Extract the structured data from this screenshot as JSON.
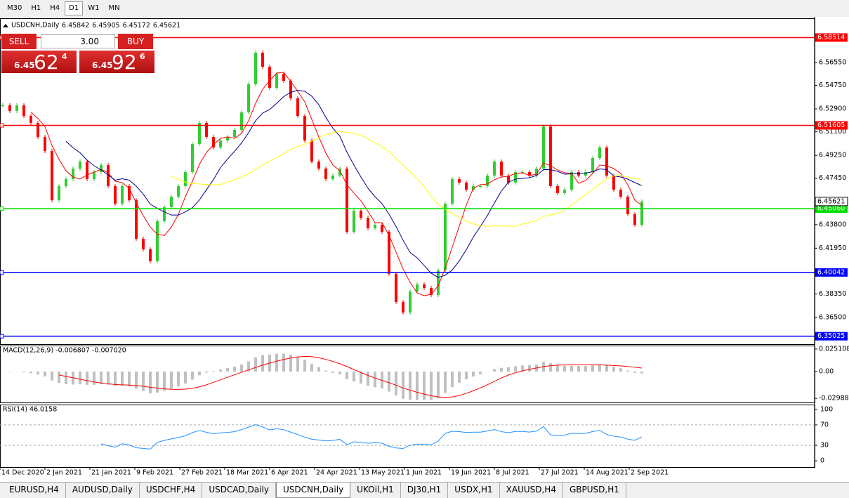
{
  "toolbar": {
    "timeframes": [
      "M30",
      "H1",
      "H4",
      "D1",
      "W1",
      "MN"
    ],
    "active": "D1"
  },
  "trade_panel": {
    "sell": "SELL",
    "buy": "BUY",
    "lots": "3.00",
    "bid": {
      "prefix": "6.45",
      "big": "62",
      "small": "4"
    },
    "ask": {
      "prefix": "6.45",
      "big": "92",
      "small": "6"
    }
  },
  "tabs": {
    "items": [
      "EURUSD,H4",
      "AUDUSD,Daily",
      "USDCHF,H4",
      "USDCAD,Daily",
      "USDCNH,Daily",
      "UKOil,H1",
      "DJ30,H1",
      "USDX,H1",
      "XAUUSD,H4",
      "GBPUSD,H1"
    ],
    "active": "USDCNH,Daily"
  },
  "chart_data": {
    "type": "candlestick",
    "title": "USDCNH,Daily",
    "ohlc": [
      6.45842,
      6.45905,
      6.45172,
      6.45621
    ],
    "up_color": "#32cd32",
    "down_color": "#ff0000",
    "closes": [
      6.5318,
      6.5274,
      6.5318,
      6.5235,
      6.518,
      6.507,
      6.4959,
      6.4572,
      6.4683,
      6.4738,
      6.4821,
      6.4876,
      6.4738,
      6.4793,
      6.4849,
      6.4683,
      6.4545,
      6.4683,
      6.4572,
      6.4269,
      6.4186,
      6.4092,
      6.4407,
      6.4517,
      6.46,
      6.4683,
      6.4793,
      6.5014,
      6.518,
      6.507,
      6.4987,
      6.5042,
      6.507,
      6.5125,
      6.5263,
      6.5484,
      6.5732,
      6.5622,
      6.5456,
      6.5567,
      6.5511,
      6.5373,
      6.5235,
      6.5042,
      6.4876,
      6.4821,
      6.4738,
      6.4766,
      6.4821,
      6.4324,
      6.449,
      6.4434,
      6.4352,
      6.4379,
      6.4324,
      6.3993,
      6.3772,
      6.3689,
      6.3854,
      6.391,
      6.3882,
      6.3827,
      6.402,
      6.4545,
      6.4738,
      6.4711,
      6.4655,
      6.4683,
      6.4683,
      6.4766,
      6.4876,
      6.4766,
      6.4711,
      6.4793,
      6.4793,
      6.4766,
      6.4821,
      6.5152,
      6.4683,
      6.4628,
      6.4655,
      6.4793,
      6.4766,
      6.4793,
      6.4904,
      6.4987,
      6.4766,
      6.4655,
      6.46,
      6.4462,
      6.4379,
      6.45621
    ],
    "moving_averages": [
      {
        "period": 5,
        "color": "#ff0000"
      },
      {
        "period": 10,
        "color": "#00008b"
      },
      {
        "period": 25,
        "color": "#ffff00"
      }
    ],
    "x_labels": [
      "14 Dec 2020",
      "2 Jan 2021",
      "21 Jan 2021",
      "9 Feb 2021",
      "27 Feb 2021",
      "18 Mar 2021",
      "6 Apr 2021",
      "24 Apr 2021",
      "13 May 2021",
      "1 Jun 2021",
      "19 Jun 2021",
      "8 Jul 2021",
      "27 Jul 2021",
      "14 Aug 2021",
      "2 Sep 2021"
    ],
    "ylim": [
      6.344,
      6.6003
    ],
    "yticks": [
      {
        "value": 6.5655,
        "label": "6.56550"
      },
      {
        "value": 6.5475,
        "label": "6.54750"
      },
      {
        "value": 6.529,
        "label": "6.52900"
      },
      {
        "value": 6.511,
        "label": "6.51100"
      },
      {
        "value": 6.4925,
        "label": "6.49250"
      },
      {
        "value": 6.4745,
        "label": "6.47450"
      },
      {
        "value": 6.438,
        "label": "6.43800"
      },
      {
        "value": 6.4195,
        "label": "6.41950"
      },
      {
        "value": 6.3835,
        "label": "6.38350"
      },
      {
        "value": 6.365,
        "label": "6.36500"
      }
    ],
    "levels": [
      {
        "value": 6.58514,
        "color": "#ff0000"
      },
      {
        "value": 6.51605,
        "color": "#ff0000"
      },
      {
        "value": {
          "value": 6.4506,
          "label": "6.45060"
        },
        "color": "#00e000"
      },
      {
        "value": 6.40042,
        "color": "#0000ff"
      },
      {
        "value": 6.35025,
        "color": "#0000ff"
      }
    ],
    "current": 6.45621,
    "macd": {
      "label": "MACD(12,26,9) -0.006807 -0.007020",
      "fast": 12,
      "slow": 26,
      "signal": 9,
      "hist_color": "#c0c0c0",
      "signal_color": "#ff0000",
      "ylim": [
        -0.0345,
        0.029
      ],
      "yticks": [
        0.025108,
        {
          "value": 0,
          "label": "0.00"
        },
        -0.029881
      ]
    },
    "rsi": {
      "label": "RSI(14) 46.0158",
      "period": 14,
      "color": "#1e90ff",
      "ylim": [
        -12.3,
        109.6
      ],
      "yticks": [
        100,
        70,
        30,
        0
      ],
      "levels": [
        70,
        30
      ]
    }
  }
}
